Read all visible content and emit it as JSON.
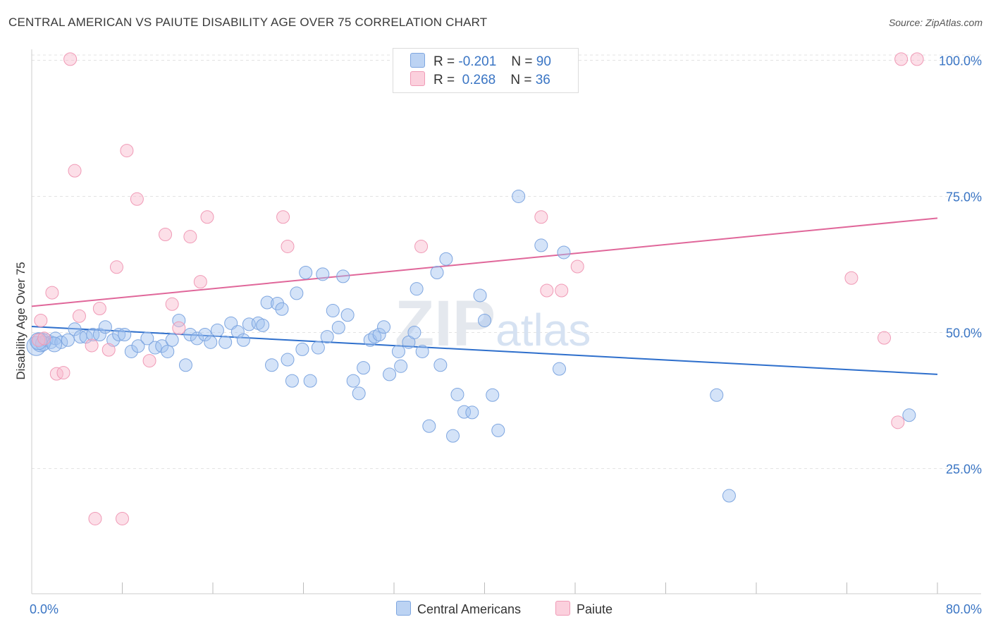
{
  "title": "CENTRAL AMERICAN VS PAIUTE DISABILITY AGE OVER 75 CORRELATION CHART",
  "source": "Source: ZipAtlas.com",
  "watermark": "ZIPatlas",
  "legend": {
    "row1": {
      "r_label": "R =",
      "r_value": "-0.201",
      "n_label": "N =",
      "n_value": "90"
    },
    "row2": {
      "r_label": "R =",
      "r_value": "0.268",
      "n_label": "N =",
      "n_value": "36"
    }
  },
  "chart_data": {
    "type": "scatter",
    "ylabel": "Disability Age Over 75",
    "xlim": [
      0,
      80
    ],
    "ylim": [
      2,
      102
    ],
    "x_tick_labels": [
      "0.0%",
      "80.0%"
    ],
    "y_tick_labels": [
      "25.0%",
      "50.0%",
      "75.0%",
      "100.0%"
    ],
    "y_ticks": [
      25,
      50,
      75,
      100
    ],
    "x_minor_ticks": [
      8,
      16,
      24,
      32,
      40,
      48,
      56,
      64,
      72,
      80
    ],
    "grid": true,
    "legend_position": "top-center",
    "series": [
      {
        "name": "Central Americans",
        "color": "#8fb4e8",
        "line_color": "#2e6fcc",
        "trend": {
          "x": [
            0,
            80
          ],
          "y": [
            51.1,
            42.3
          ]
        },
        "points": [
          [
            0.4,
            47.5
          ],
          [
            0.8,
            48.2
          ],
          [
            1.3,
            48.6
          ],
          [
            1.7,
            48.2
          ],
          [
            2.1,
            48.9
          ],
          [
            2.6,
            48.2
          ],
          [
            3.2,
            48.6
          ],
          [
            3.8,
            50.6
          ],
          [
            4.3,
            49.2
          ],
          [
            4.8,
            49.2
          ],
          [
            5.4,
            49.6
          ],
          [
            6.0,
            49.6
          ],
          [
            6.5,
            51.0
          ],
          [
            7.2,
            48.6
          ],
          [
            7.7,
            49.6
          ],
          [
            8.2,
            49.6
          ],
          [
            8.8,
            46.5
          ],
          [
            9.4,
            47.5
          ],
          [
            10.2,
            48.9
          ],
          [
            10.9,
            47.2
          ],
          [
            11.5,
            47.5
          ],
          [
            12.0,
            46.5
          ],
          [
            12.4,
            48.6
          ],
          [
            13.0,
            52.2
          ],
          [
            13.6,
            44.0
          ],
          [
            14.0,
            49.6
          ],
          [
            14.6,
            48.9
          ],
          [
            15.3,
            49.6
          ],
          [
            15.8,
            48.2
          ],
          [
            16.4,
            50.4
          ],
          [
            17.1,
            48.2
          ],
          [
            17.6,
            51.7
          ],
          [
            18.2,
            50.1
          ],
          [
            18.7,
            48.6
          ],
          [
            19.2,
            51.5
          ],
          [
            20.0,
            51.7
          ],
          [
            20.4,
            51.3
          ],
          [
            20.8,
            55.5
          ],
          [
            21.2,
            44.0
          ],
          [
            21.7,
            55.3
          ],
          [
            22.1,
            54.3
          ],
          [
            22.6,
            45.0
          ],
          [
            23.0,
            41.1
          ],
          [
            23.4,
            57.2
          ],
          [
            23.9,
            46.9
          ],
          [
            24.2,
            61.0
          ],
          [
            24.6,
            41.1
          ],
          [
            25.3,
            47.2
          ],
          [
            25.7,
            60.7
          ],
          [
            26.1,
            49.2
          ],
          [
            26.6,
            54.0
          ],
          [
            27.1,
            50.9
          ],
          [
            27.5,
            60.3
          ],
          [
            27.9,
            53.2
          ],
          [
            28.4,
            41.1
          ],
          [
            28.9,
            38.8
          ],
          [
            29.3,
            43.5
          ],
          [
            29.9,
            48.6
          ],
          [
            30.3,
            49.2
          ],
          [
            30.7,
            49.6
          ],
          [
            31.1,
            51.0
          ],
          [
            31.6,
            42.3
          ],
          [
            32.4,
            46.5
          ],
          [
            32.6,
            43.8
          ],
          [
            33.3,
            48.2
          ],
          [
            33.8,
            50.0
          ],
          [
            34.0,
            58.0
          ],
          [
            34.5,
            46.5
          ],
          [
            35.1,
            32.8
          ],
          [
            35.8,
            61.0
          ],
          [
            36.1,
            44.0
          ],
          [
            36.6,
            63.5
          ],
          [
            37.2,
            31.0
          ],
          [
            37.6,
            38.6
          ],
          [
            38.2,
            35.4
          ],
          [
            38.9,
            35.3
          ],
          [
            39.6,
            56.8
          ],
          [
            40.0,
            52.2
          ],
          [
            40.7,
            38.5
          ],
          [
            41.2,
            32.0
          ],
          [
            43.0,
            75.0
          ],
          [
            45.0,
            66.0
          ],
          [
            46.6,
            43.3
          ],
          [
            47.0,
            64.7
          ],
          [
            60.5,
            38.5
          ],
          [
            61.6,
            20.0
          ],
          [
            77.5,
            34.8
          ],
          [
            1.0,
            48.0
          ],
          [
            2.0,
            47.8
          ],
          [
            0.6,
            48.4
          ]
        ],
        "sizes": [
          18,
          18,
          12,
          12,
          12,
          12,
          12,
          12,
          12,
          12,
          12,
          12,
          12,
          12,
          12,
          12,
          12,
          12,
          12,
          12,
          12,
          12,
          12,
          12,
          12,
          12,
          12,
          12,
          12,
          12,
          12,
          12,
          12,
          12,
          12,
          12,
          12,
          12,
          12,
          12,
          12,
          12,
          12,
          12,
          12,
          12,
          12,
          12,
          12,
          12,
          12,
          12,
          12,
          12,
          12,
          12,
          12,
          12,
          12,
          12,
          12,
          12,
          12,
          12,
          12,
          12,
          12,
          12,
          12,
          12,
          12,
          12,
          12,
          12,
          12,
          12,
          12,
          12,
          12,
          12,
          12,
          12,
          12,
          12,
          12,
          12,
          12,
          14,
          14,
          16
        ]
      },
      {
        "name": "Paiute",
        "color": "#f4aac0",
        "line_color": "#e0679a",
        "trend": {
          "x": [
            0,
            80
          ],
          "y": [
            54.8,
            71.0
          ]
        },
        "points": [
          [
            0.6,
            48.6
          ],
          [
            0.8,
            52.2
          ],
          [
            1.1,
            48.9
          ],
          [
            1.8,
            57.3
          ],
          [
            2.2,
            42.4
          ],
          [
            2.8,
            42.6
          ],
          [
            3.4,
            100.2
          ],
          [
            3.8,
            79.7
          ],
          [
            4.2,
            53.0
          ],
          [
            5.3,
            47.6
          ],
          [
            5.6,
            15.8
          ],
          [
            6.0,
            54.4
          ],
          [
            6.8,
            46.8
          ],
          [
            7.5,
            62.0
          ],
          [
            8.0,
            15.8
          ],
          [
            8.4,
            83.4
          ],
          [
            9.3,
            74.5
          ],
          [
            10.4,
            44.8
          ],
          [
            11.8,
            68.0
          ],
          [
            12.4,
            55.2
          ],
          [
            13.0,
            50.8
          ],
          [
            14.0,
            67.6
          ],
          [
            14.9,
            59.3
          ],
          [
            15.5,
            71.2
          ],
          [
            22.2,
            71.2
          ],
          [
            22.6,
            65.8
          ],
          [
            34.4,
            65.8
          ],
          [
            45.0,
            71.2
          ],
          [
            45.5,
            57.7
          ],
          [
            46.8,
            57.7
          ],
          [
            48.2,
            62.1
          ],
          [
            72.4,
            60.0
          ],
          [
            75.3,
            49.0
          ],
          [
            76.5,
            33.5
          ],
          [
            76.8,
            100.2
          ],
          [
            78.2,
            100.2
          ]
        ],
        "sizes": [
          12,
          12,
          12,
          12,
          12,
          12,
          12,
          12,
          12,
          12,
          12,
          12,
          12,
          12,
          12,
          12,
          12,
          12,
          12,
          12,
          12,
          12,
          12,
          12,
          12,
          12,
          12,
          12,
          12,
          12,
          12,
          12,
          12,
          12,
          12,
          12
        ]
      }
    ]
  }
}
